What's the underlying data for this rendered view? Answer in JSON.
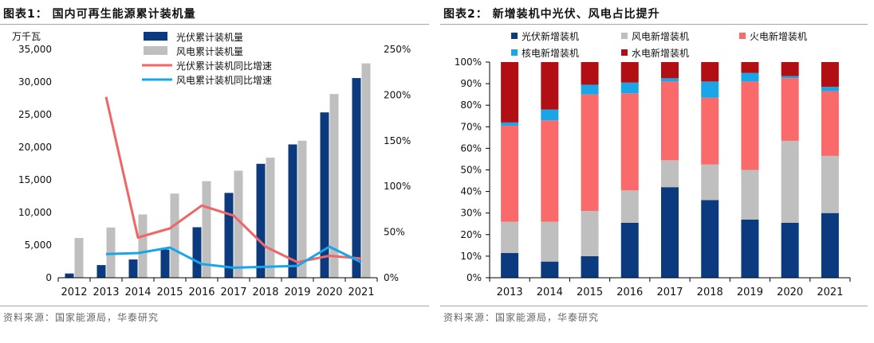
{
  "left": {
    "title": "图表1：   国内可再生能源累计装机量",
    "source": "资料来源：国家能源局，华泰研究",
    "chart_data": {
      "type": "bar",
      "categories": [
        "2012",
        "2013",
        "2014",
        "2015",
        "2016",
        "2017",
        "2018",
        "2019",
        "2020",
        "2021"
      ],
      "yunit": "万千瓦",
      "ylim": [
        0,
        35000
      ],
      "yticks": [
        0,
        5000,
        10000,
        15000,
        20000,
        25000,
        30000,
        35000
      ],
      "ytick_labels": [
        "0",
        "5,000",
        "10,000",
        "15,000",
        "20,000",
        "25,000",
        "30,000",
        "35,000"
      ],
      "y2lim": [
        0,
        250
      ],
      "y2ticks": [
        0,
        50,
        100,
        150,
        200,
        250
      ],
      "y2tick_labels": [
        "0%",
        "50%",
        "100%",
        "150%",
        "200%",
        "250%"
      ],
      "bar_series": [
        {
          "name": "光伏累计装机量",
          "color": "#0b3a7e",
          "values": [
            650,
            1940,
            2800,
            4320,
            7740,
            13000,
            17460,
            20430,
            25340,
            30600
          ]
        },
        {
          "name": "风电累计装机量",
          "color": "#bfbfbf",
          "values": [
            6100,
            7700,
            9700,
            12900,
            14800,
            16400,
            18400,
            21000,
            28150,
            32850
          ]
        }
      ],
      "line_series": [
        {
          "name": "光伏累计装机同比增速",
          "color": "#f06565",
          "axis": "right",
          "values": [
            null,
            198,
            44,
            54,
            79,
            68,
            34,
            17,
            24,
            21
          ]
        },
        {
          "name": "风电累计装机同比增速",
          "color": "#18a6e8",
          "axis": "right",
          "values": [
            null,
            26,
            27,
            33,
            15,
            11,
            12,
            13,
            34,
            17
          ]
        }
      ],
      "grid": false,
      "legend_position": "top-center"
    }
  },
  "right": {
    "title": "图表2：   新增装机中光伏、风电占比提升",
    "source": "资料来源：国家能源局，华泰研究",
    "chart_data": {
      "type": "bar",
      "stacked": true,
      "categories": [
        "2013",
        "2014",
        "2015",
        "2016",
        "2017",
        "2018",
        "2019",
        "2020",
        "2021"
      ],
      "ylim": [
        0,
        100
      ],
      "yticks": [
        0,
        10,
        20,
        30,
        40,
        50,
        60,
        70,
        80,
        90,
        100
      ],
      "ytick_labels": [
        "0%",
        "10%",
        "20%",
        "30%",
        "40%",
        "50%",
        "60%",
        "70%",
        "80%",
        "90%",
        "100%"
      ],
      "series": [
        {
          "name": "光伏新增装机",
          "color": "#0b3a7e",
          "values": [
            11.5,
            7.5,
            10,
            25.5,
            42,
            36,
            27,
            25.5,
            30
          ]
        },
        {
          "name": "风电新增装机",
          "color": "#bfbfbf",
          "values": [
            14.5,
            18.5,
            21,
            15,
            12.5,
            16.5,
            23,
            38,
            26.5
          ]
        },
        {
          "name": "火电新增装机",
          "color": "#fb6a6a",
          "values": [
            44.5,
            47,
            54,
            45,
            36.5,
            31,
            41,
            29,
            30
          ]
        },
        {
          "name": "核电新增装机",
          "color": "#18a6e8",
          "values": [
            1.5,
            5,
            4.5,
            5,
            1.5,
            7.5,
            4,
            1,
            2
          ]
        },
        {
          "name": "水电新增装机",
          "color": "#b20f14",
          "values": [
            28,
            22,
            10.5,
            9.5,
            7.5,
            9,
            5,
            6.5,
            11.5
          ]
        }
      ],
      "grid": false,
      "legend_position": "top"
    }
  }
}
